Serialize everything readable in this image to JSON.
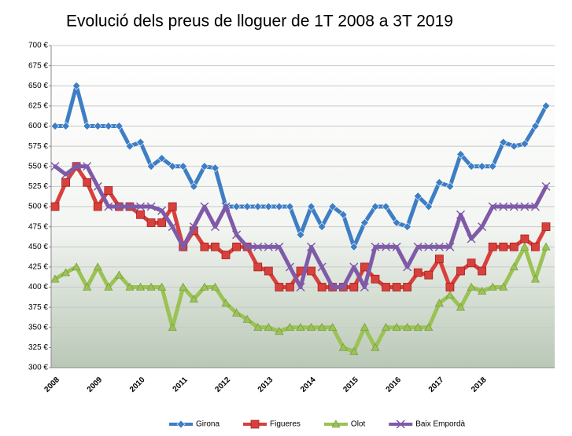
{
  "chart_data": {
    "type": "line",
    "title": "Evolució dels preus de lloguer de 1T 2008 a 3T 2019",
    "categories": [
      "2008",
      null,
      null,
      null,
      "2009",
      null,
      null,
      null,
      "2010",
      null,
      null,
      null,
      "2011",
      null,
      null,
      null,
      "2012",
      null,
      null,
      null,
      "2013",
      null,
      null,
      null,
      "2014",
      null,
      null,
      null,
      "2015",
      null,
      null,
      null,
      "2016",
      null,
      null,
      null,
      "2017",
      null,
      null,
      null,
      "2018",
      null,
      null,
      null,
      null,
      null,
      null
    ],
    "series": [
      {
        "name": "Girona",
        "color": "#3d7ec4",
        "marker": "diamond",
        "values": [
          600,
          600,
          650,
          600,
          600,
          600,
          600,
          575,
          580,
          550,
          560,
          550,
          550,
          525,
          550,
          548,
          500,
          500,
          500,
          500,
          500,
          500,
          500,
          465,
          500,
          475,
          500,
          490,
          450,
          480,
          500,
          500,
          480,
          475,
          513,
          500,
          530,
          525,
          565,
          550,
          550,
          550,
          580,
          575,
          578,
          600,
          625
        ]
      },
      {
        "name": "Figueres",
        "color": "#d9403c",
        "marker": "square",
        "values": [
          500,
          530,
          550,
          530,
          500,
          520,
          500,
          500,
          490,
          480,
          480,
          500,
          450,
          470,
          450,
          450,
          440,
          450,
          450,
          425,
          420,
          400,
          400,
          420,
          420,
          400,
          400,
          400,
          400,
          425,
          410,
          400,
          400,
          400,
          418,
          415,
          435,
          400,
          420,
          430,
          420,
          450,
          450,
          450,
          460,
          450,
          475
        ]
      },
      {
        "name": "Olot",
        "color": "#9bc255",
        "marker": "triangle",
        "values": [
          410,
          418,
          425,
          400,
          425,
          400,
          415,
          400,
          400,
          400,
          400,
          350,
          400,
          385,
          400,
          400,
          380,
          368,
          360,
          350,
          350,
          345,
          350,
          350,
          350,
          350,
          350,
          325,
          320,
          350,
          325,
          350,
          350,
          350,
          350,
          350,
          380,
          390,
          375,
          400,
          395,
          400,
          400,
          425,
          450,
          410,
          450
        ]
      },
      {
        "name": "Baix Empordà",
        "color": "#7e5aa8",
        "marker": "x",
        "values": [
          550,
          540,
          550,
          550,
          525,
          500,
          500,
          500,
          500,
          500,
          495,
          475,
          450,
          475,
          500,
          475,
          500,
          465,
          450,
          450,
          450,
          450,
          425,
          400,
          450,
          425,
          400,
          400,
          425,
          400,
          450,
          450,
          450,
          425,
          450,
          450,
          450,
          450,
          490,
          460,
          475,
          500,
          500,
          500,
          500,
          500,
          525
        ]
      }
    ],
    "ylim": [
      300,
      700
    ],
    "yticks": [
      {
        "value": 300,
        "label": "300 €"
      },
      {
        "value": 325,
        "label": "325 €"
      },
      {
        "value": 350,
        "label": "350 €"
      },
      {
        "value": 375,
        "label": "375 €"
      },
      {
        "value": 400,
        "label": "400 €"
      },
      {
        "value": 425,
        "label": "425 €"
      },
      {
        "value": 450,
        "label": "450 €"
      },
      {
        "value": 475,
        "label": "475 €"
      },
      {
        "value": 500,
        "label": "500 €"
      },
      {
        "value": 525,
        "label": "525 €"
      },
      {
        "value": 550,
        "label": "550 €"
      },
      {
        "value": 575,
        "label": "575 €"
      },
      {
        "value": 600,
        "label": "600 €"
      },
      {
        "value": 625,
        "label": "625 €"
      },
      {
        "value": 650,
        "label": "650 €"
      },
      {
        "value": 675,
        "label": "675 €"
      },
      {
        "value": 700,
        "label": "700 €"
      }
    ],
    "grid": true,
    "legend": "bottom"
  }
}
